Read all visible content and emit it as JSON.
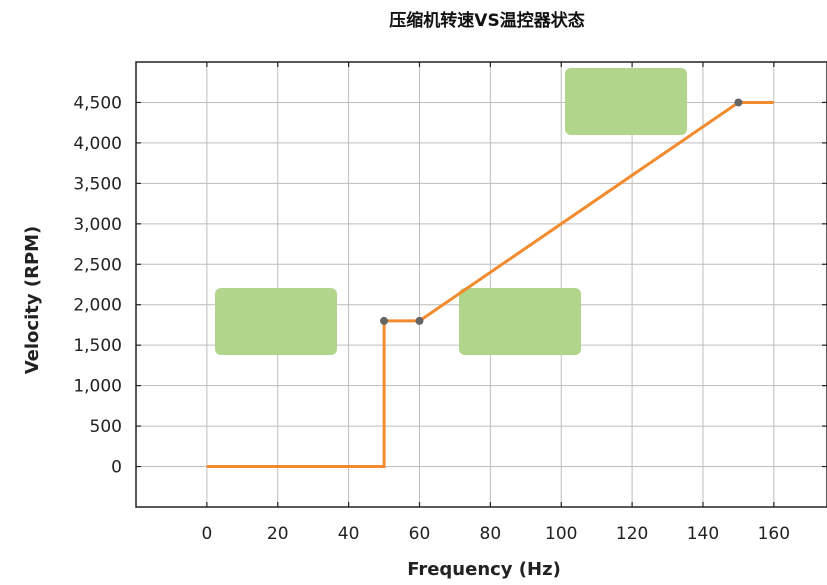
{
  "chart_data": {
    "type": "line",
    "title": "压缩机转速VS温控器状态",
    "xlabel": "Frequency (Hz)",
    "ylabel": "Velocity (RPM)",
    "xlim": [
      -20,
      175
    ],
    "ylim": [
      -500,
      5000
    ],
    "x_ticks": [
      0,
      20,
      40,
      60,
      80,
      100,
      120,
      140,
      160
    ],
    "x_tick_labels": [
      "0",
      "20",
      "40",
      "60",
      "80",
      "100",
      "120",
      "140",
      "160"
    ],
    "y_ticks": [
      0,
      500,
      1000,
      1500,
      2000,
      2500,
      3000,
      3500,
      4000,
      4500
    ],
    "y_tick_labels": [
      "0",
      "500",
      "1,000",
      "1,500",
      "2,000",
      "2,500",
      "3,000",
      "3,500",
      "4,000",
      "4,500"
    ],
    "grid": true,
    "series": [
      {
        "color": "#f28a2e",
        "x": [
          0,
          50,
          50,
          60,
          150,
          160
        ],
        "y": [
          0,
          0,
          1800,
          1800,
          4500,
          4500
        ]
      }
    ],
    "markers": {
      "color": "#666666",
      "x": [
        50,
        60,
        150
      ],
      "y": [
        1800,
        1800,
        4500
      ]
    },
    "annotation_boxes": {
      "color": "#b1d58b",
      "count": 3,
      "text": [
        "",
        "",
        ""
      ]
    }
  }
}
